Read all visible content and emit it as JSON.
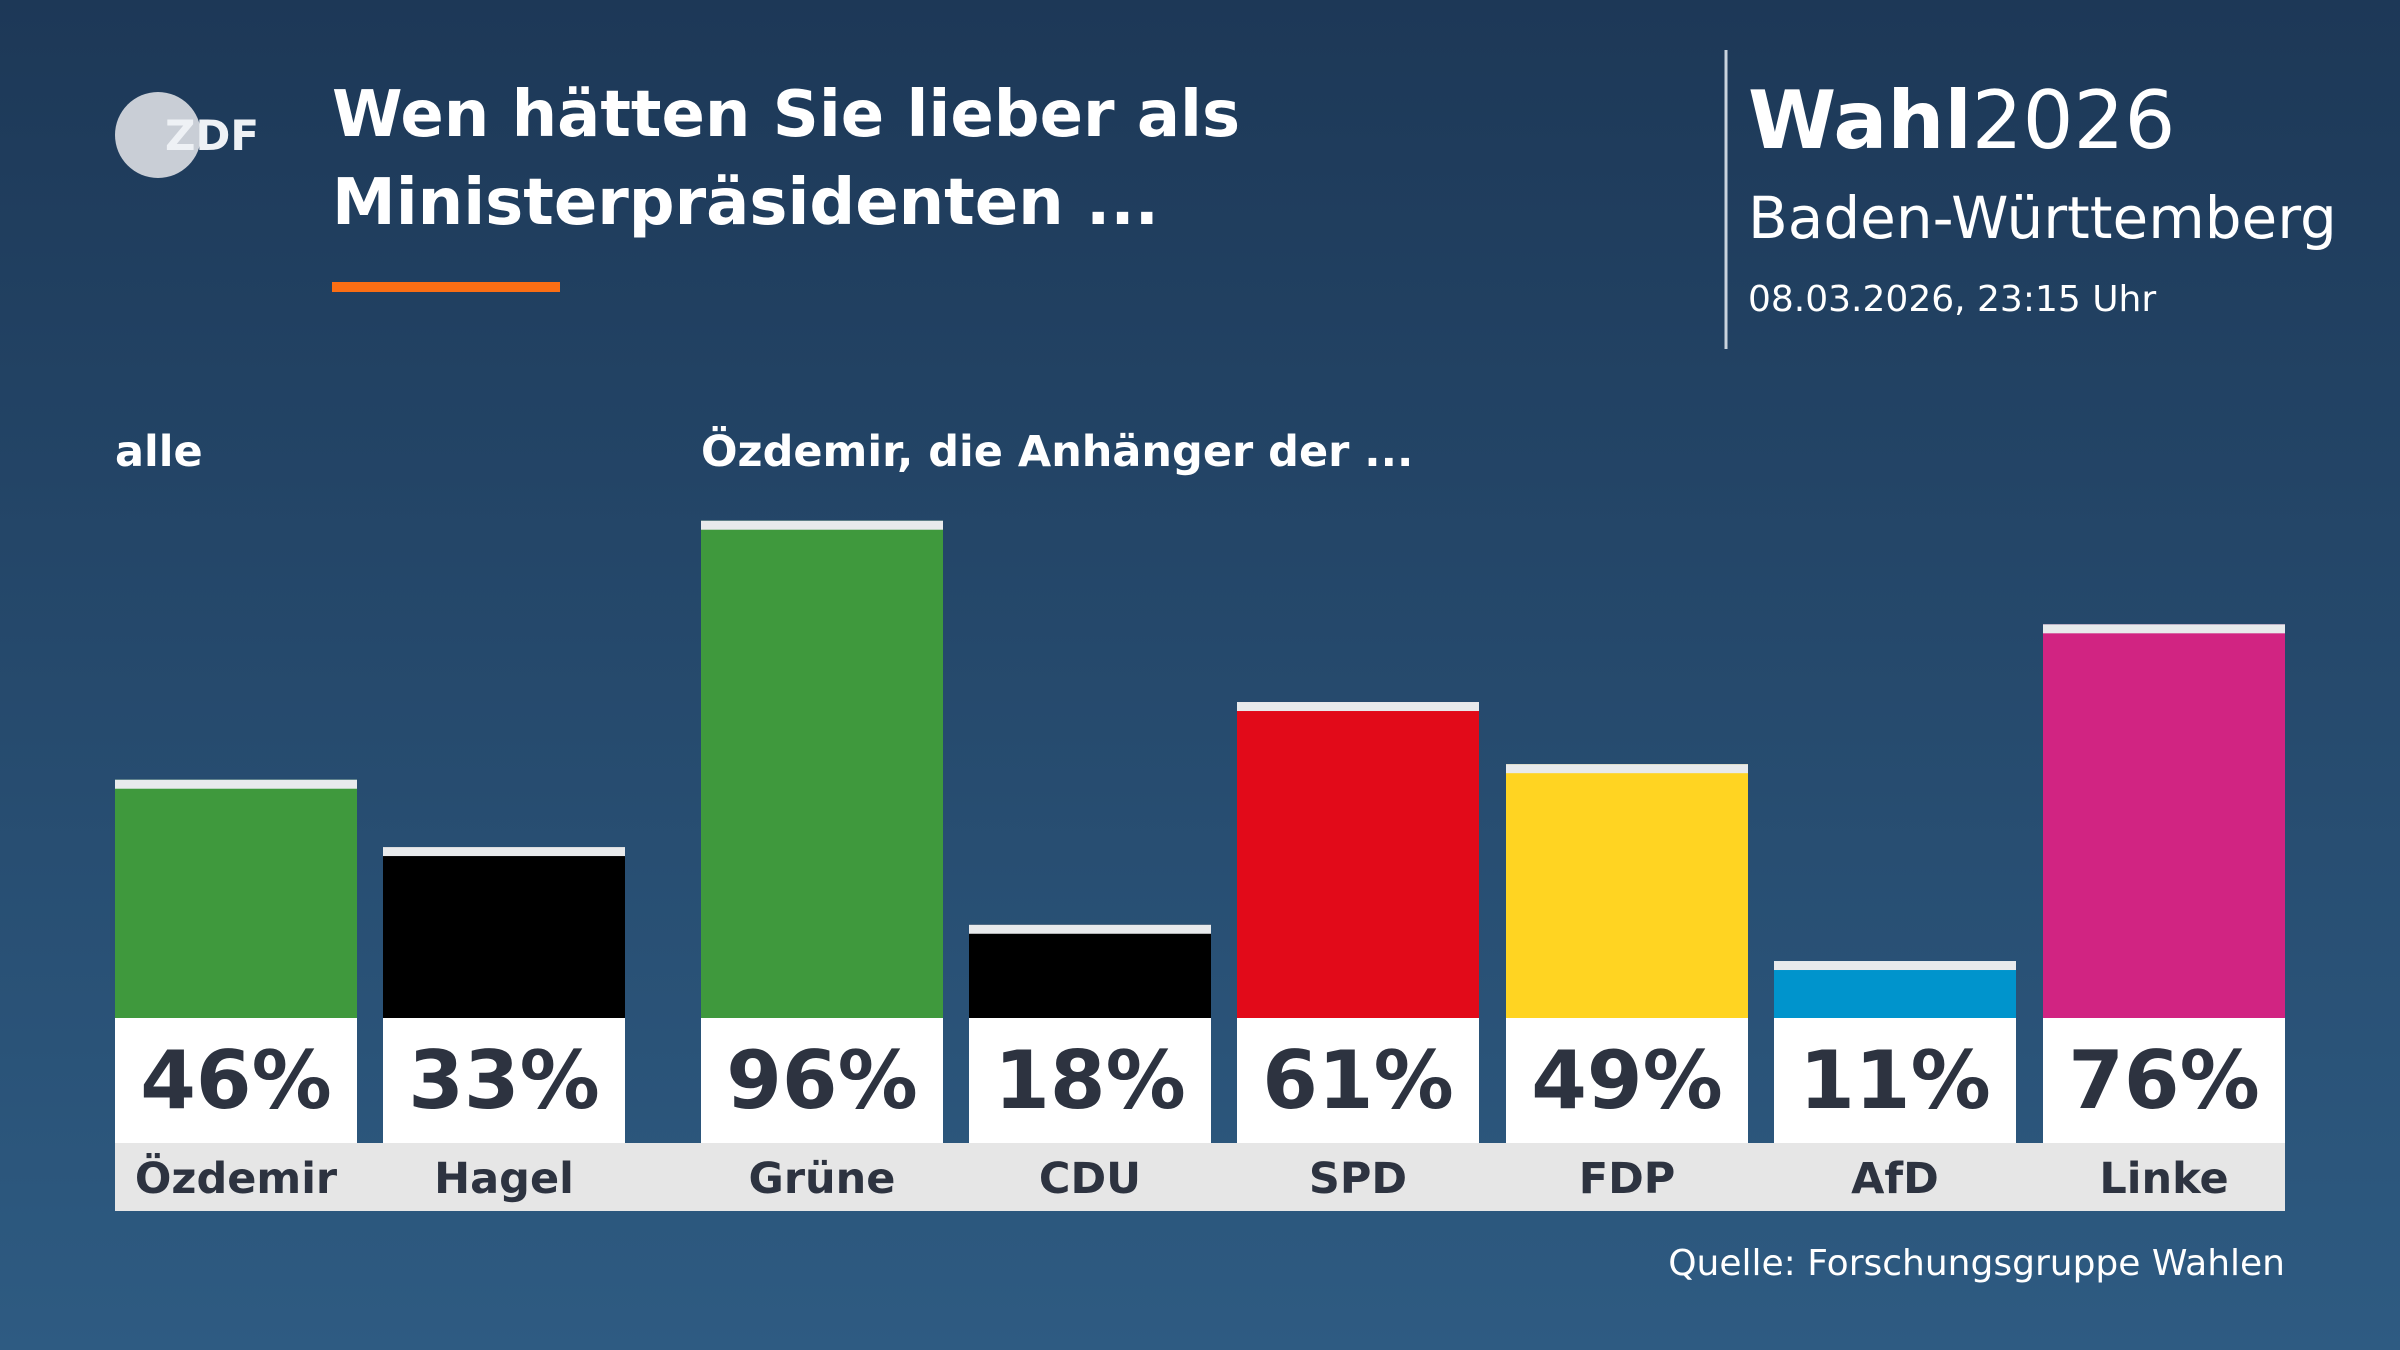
{
  "logo": "ZDF",
  "brand": {
    "bold": "Wahl",
    "light": "2026"
  },
  "region": "Baden-Württemberg",
  "timestamp": "08.03.2026, 23:15 Uhr",
  "chart_data": {
    "type": "bar",
    "title": [
      "Wen hätten Sie lieber als",
      "Ministerpräsidenten ..."
    ],
    "group_labels": [
      "alle",
      "Özdemir, die Anhänger der ..."
    ],
    "categories": [
      "Özdemir",
      "Hagel",
      "Grüne",
      "CDU",
      "SPD",
      "FDP",
      "AfD",
      "Linke"
    ],
    "values": [
      46,
      33,
      96,
      18,
      61,
      49,
      11,
      76
    ],
    "value_labels": [
      "46%",
      "33%",
      "96%",
      "18%",
      "61%",
      "49%",
      "11%",
      "76%"
    ],
    "colors": [
      "#3f993d",
      "#000000",
      "#3f993d",
      "#000000",
      "#e20a19",
      "#ffd422",
      "#0094cc",
      "#d12482"
    ],
    "source": "Quelle: Forschungsgruppe Wahlen"
  }
}
